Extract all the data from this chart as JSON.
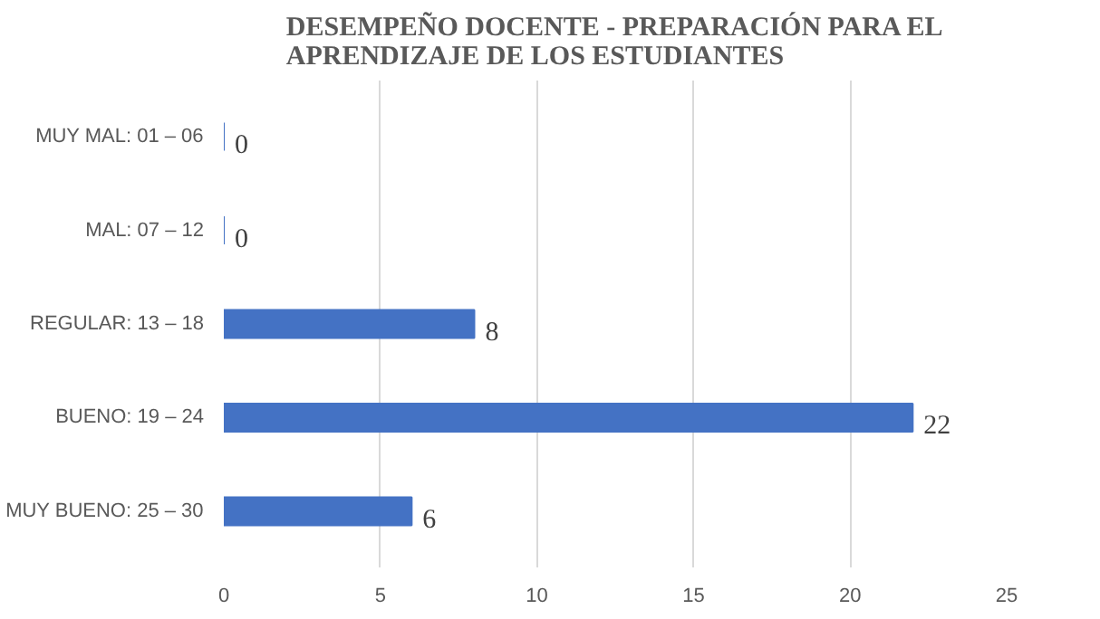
{
  "chart_data": {
    "type": "bar",
    "orientation": "horizontal",
    "title": "DESEMPEÑO DOCENTE - PREPARACIÓN PARA EL\nAPRENDIZAJE  DE LOS ESTUDIANTES",
    "categories": [
      "MUY MAL: 01 – 06",
      "MAL: 07 – 12",
      "REGULAR: 13 – 18",
      "BUENO: 19 – 24",
      "MUY BUENO: 25 – 30"
    ],
    "values": [
      0,
      0,
      8,
      22,
      6
    ],
    "color": "#4472c4",
    "xlim": [
      0,
      25
    ],
    "xticks": [
      0,
      5,
      10,
      15,
      20,
      25
    ],
    "grid": "x",
    "data_labels": true
  }
}
